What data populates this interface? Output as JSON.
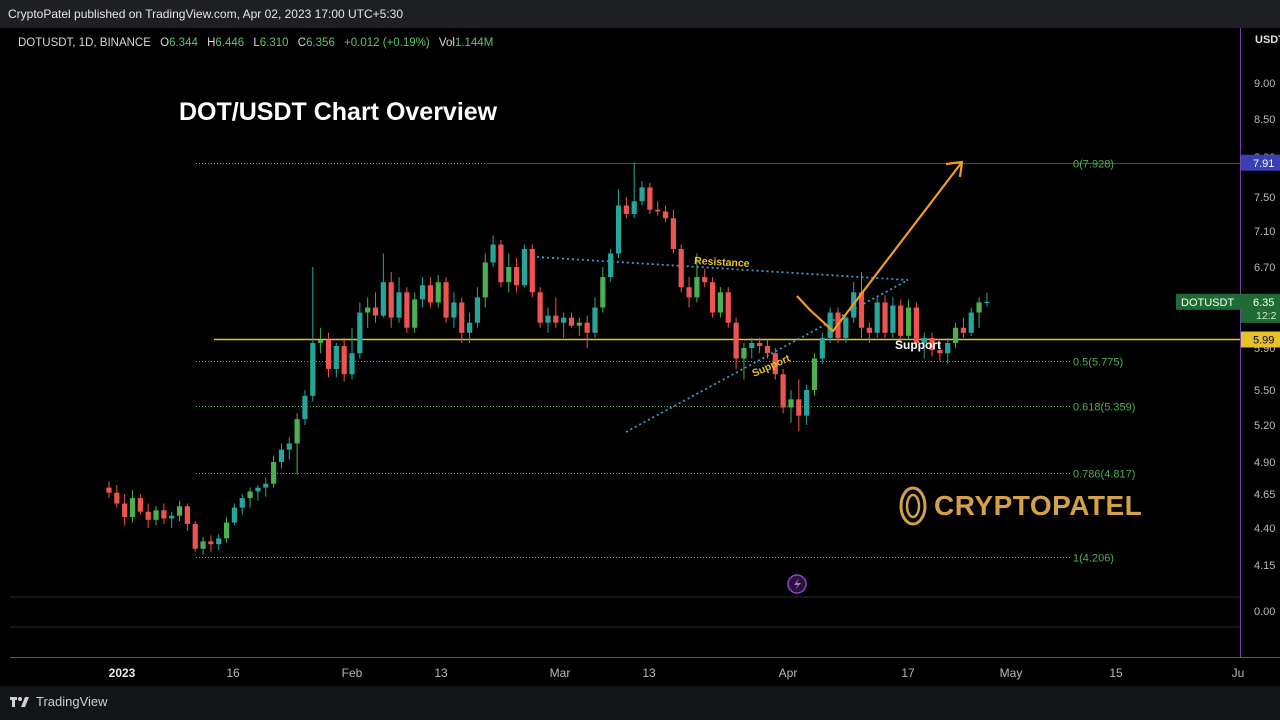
{
  "header": {
    "published": "CryptoPatel published on TradingView.com, Apr 02, 2023 17:00 UTC+5:30"
  },
  "legend": {
    "symbol": "DOTUSDT, 1D, BINANCE",
    "o_label": "O",
    "o": "6.344",
    "h_label": "H",
    "h": "6.446",
    "l_label": "L",
    "l": "6.310",
    "c_label": "C",
    "c": "6.356",
    "change": "+0.012 (+0.19%)",
    "vol_label": "Vol",
    "vol": "1.144M"
  },
  "footer": {
    "brand": "TradingView"
  },
  "watermark": "CRYPTOPATEL",
  "colors": {
    "bull": "#26a69a",
    "bull_alt": "#4caf50",
    "bear": "#ef5350",
    "support": "#e6c229",
    "arrow": "#f29d22",
    "trend": "#3d9bd1",
    "fib": "#4caf50",
    "fib_top": "#3a3fb5",
    "axis_border": "#7b3fa6"
  },
  "chart_data": {
    "type": "candlestick",
    "title": "DOT/USDT Chart Overview",
    "symbol": "DOTUSDT",
    "timeframe": "1D",
    "exchange": "BINANCE",
    "price_unit": "USDT",
    "ylim": [
      0.0,
      9.3
    ],
    "y_ticks": [
      "9.00",
      "8.50",
      "8.00",
      "7.50",
      "7.10",
      "6.70",
      "5.90",
      "5.50",
      "5.20",
      "4.90",
      "4.65",
      "4.40",
      "4.15",
      "0.00"
    ],
    "y_axis_header": "USDT",
    "x_ticks": [
      "2023",
      "16",
      "Feb",
      "13",
      "Mar",
      "13",
      "Apr",
      "17",
      "May",
      "15",
      "Ju"
    ],
    "candles": [
      {
        "date": "2023-01-01",
        "o": 4.7,
        "h": 4.75,
        "l": 4.62,
        "c": 4.66
      },
      {
        "date": "2023-01-02",
        "o": 4.66,
        "h": 4.72,
        "l": 4.55,
        "c": 4.58
      },
      {
        "date": "2023-01-03",
        "o": 4.58,
        "h": 4.65,
        "l": 4.42,
        "c": 4.48
      },
      {
        "date": "2023-01-04",
        "o": 4.48,
        "h": 4.68,
        "l": 4.44,
        "c": 4.62
      },
      {
        "date": "2023-01-05",
        "o": 4.62,
        "h": 4.65,
        "l": 4.5,
        "c": 4.52
      },
      {
        "date": "2023-01-06",
        "o": 4.52,
        "h": 4.58,
        "l": 4.4,
        "c": 4.46
      },
      {
        "date": "2023-01-07",
        "o": 4.46,
        "h": 4.56,
        "l": 4.42,
        "c": 4.53
      },
      {
        "date": "2023-01-08",
        "o": 4.53,
        "h": 4.58,
        "l": 4.43,
        "c": 4.47
      },
      {
        "date": "2023-01-09",
        "o": 4.47,
        "h": 4.52,
        "l": 4.4,
        "c": 4.49
      },
      {
        "date": "2023-01-10",
        "o": 4.49,
        "h": 4.6,
        "l": 4.45,
        "c": 4.56
      },
      {
        "date": "2023-01-11",
        "o": 4.56,
        "h": 4.58,
        "l": 4.38,
        "c": 4.43
      },
      {
        "date": "2023-01-12",
        "o": 4.43,
        "h": 4.45,
        "l": 4.24,
        "c": 4.26
      },
      {
        "date": "2023-01-13",
        "o": 4.26,
        "h": 4.34,
        "l": 4.22,
        "c": 4.31
      },
      {
        "date": "2023-01-14",
        "o": 4.31,
        "h": 4.35,
        "l": 4.24,
        "c": 4.29
      },
      {
        "date": "2023-01-15",
        "o": 4.29,
        "h": 4.36,
        "l": 4.25,
        "c": 4.33
      },
      {
        "date": "2023-01-16",
        "o": 4.33,
        "h": 4.48,
        "l": 4.3,
        "c": 4.44
      },
      {
        "date": "2023-01-17",
        "o": 4.44,
        "h": 4.58,
        "l": 4.42,
        "c": 4.55
      },
      {
        "date": "2023-01-18",
        "o": 4.55,
        "h": 4.65,
        "l": 4.5,
        "c": 4.62
      },
      {
        "date": "2023-01-19",
        "o": 4.62,
        "h": 4.7,
        "l": 4.55,
        "c": 4.67
      },
      {
        "date": "2023-01-20",
        "o": 4.67,
        "h": 4.72,
        "l": 4.6,
        "c": 4.7
      },
      {
        "date": "2023-01-21",
        "o": 4.7,
        "h": 4.78,
        "l": 4.63,
        "c": 4.73
      },
      {
        "date": "2023-01-22",
        "o": 4.73,
        "h": 4.95,
        "l": 4.7,
        "c": 4.9
      },
      {
        "date": "2023-01-23",
        "o": 4.9,
        "h": 5.05,
        "l": 4.85,
        "c": 5.0
      },
      {
        "date": "2023-01-24",
        "o": 5.0,
        "h": 5.1,
        "l": 4.92,
        "c": 5.05
      },
      {
        "date": "2023-01-25",
        "o": 5.05,
        "h": 5.3,
        "l": 4.8,
        "c": 5.25
      },
      {
        "date": "2023-01-26",
        "o": 5.25,
        "h": 5.5,
        "l": 5.2,
        "c": 5.45
      },
      {
        "date": "2023-01-27",
        "o": 5.45,
        "h": 6.7,
        "l": 5.4,
        "c": 5.95
      },
      {
        "date": "2023-01-28",
        "o": 5.95,
        "h": 6.1,
        "l": 5.85,
        "c": 5.98
      },
      {
        "date": "2023-01-29",
        "o": 5.98,
        "h": 6.05,
        "l": 5.62,
        "c": 5.7
      },
      {
        "date": "2023-01-30",
        "o": 5.7,
        "h": 5.95,
        "l": 5.62,
        "c": 5.92
      },
      {
        "date": "2023-01-31",
        "o": 5.92,
        "h": 6.0,
        "l": 5.58,
        "c": 5.65
      },
      {
        "date": "2023-02-01",
        "o": 5.65,
        "h": 6.1,
        "l": 5.6,
        "c": 5.85
      },
      {
        "date": "2023-02-02",
        "o": 5.85,
        "h": 6.35,
        "l": 5.8,
        "c": 6.25
      },
      {
        "date": "2023-02-03",
        "o": 6.25,
        "h": 6.4,
        "l": 6.1,
        "c": 6.3
      },
      {
        "date": "2023-02-04",
        "o": 6.3,
        "h": 6.45,
        "l": 6.15,
        "c": 6.22
      },
      {
        "date": "2023-02-05",
        "o": 6.22,
        "h": 6.85,
        "l": 6.2,
        "c": 6.55
      },
      {
        "date": "2023-02-06",
        "o": 6.55,
        "h": 6.65,
        "l": 6.1,
        "c": 6.2
      },
      {
        "date": "2023-02-07",
        "o": 6.2,
        "h": 6.6,
        "l": 6.15,
        "c": 6.45
      },
      {
        "date": "2023-02-08",
        "o": 6.45,
        "h": 6.5,
        "l": 6.05,
        "c": 6.1
      },
      {
        "date": "2023-02-09",
        "o": 6.1,
        "h": 6.45,
        "l": 6.05,
        "c": 6.38
      },
      {
        "date": "2023-02-10",
        "o": 6.38,
        "h": 6.6,
        "l": 6.3,
        "c": 6.52
      },
      {
        "date": "2023-02-11",
        "o": 6.52,
        "h": 6.6,
        "l": 6.3,
        "c": 6.35
      },
      {
        "date": "2023-02-12",
        "o": 6.35,
        "h": 6.62,
        "l": 6.3,
        "c": 6.55
      },
      {
        "date": "2023-02-13",
        "o": 6.55,
        "h": 6.6,
        "l": 6.15,
        "c": 6.2
      },
      {
        "date": "2023-02-14",
        "o": 6.2,
        "h": 6.45,
        "l": 6.1,
        "c": 6.35
      },
      {
        "date": "2023-02-15",
        "o": 6.35,
        "h": 6.4,
        "l": 5.95,
        "c": 6.05
      },
      {
        "date": "2023-02-16",
        "o": 6.05,
        "h": 6.25,
        "l": 5.95,
        "c": 6.15
      },
      {
        "date": "2023-02-17",
        "o": 6.15,
        "h": 6.5,
        "l": 6.1,
        "c": 6.4
      },
      {
        "date": "2023-02-18",
        "o": 6.4,
        "h": 6.85,
        "l": 6.3,
        "c": 6.75
      },
      {
        "date": "2023-02-19",
        "o": 6.75,
        "h": 7.05,
        "l": 6.7,
        "c": 6.95
      },
      {
        "date": "2023-02-20",
        "o": 6.95,
        "h": 7.0,
        "l": 6.5,
        "c": 6.55
      },
      {
        "date": "2023-02-21",
        "o": 6.55,
        "h": 6.85,
        "l": 6.45,
        "c": 6.7
      },
      {
        "date": "2023-02-22",
        "o": 6.7,
        "h": 6.8,
        "l": 6.45,
        "c": 6.52
      },
      {
        "date": "2023-02-23",
        "o": 6.52,
        "h": 6.95,
        "l": 6.5,
        "c": 6.9
      },
      {
        "date": "2023-02-24",
        "o": 6.9,
        "h": 6.95,
        "l": 6.4,
        "c": 6.45
      },
      {
        "date": "2023-02-25",
        "o": 6.45,
        "h": 6.5,
        "l": 6.1,
        "c": 6.15
      },
      {
        "date": "2023-02-26",
        "o": 6.15,
        "h": 6.3,
        "l": 6.05,
        "c": 6.22
      },
      {
        "date": "2023-02-27",
        "o": 6.22,
        "h": 6.4,
        "l": 6.1,
        "c": 6.15
      },
      {
        "date": "2023-02-28",
        "o": 6.15,
        "h": 6.25,
        "l": 6.0,
        "c": 6.2
      },
      {
        "date": "2023-03-01",
        "o": 6.2,
        "h": 6.25,
        "l": 6.1,
        "c": 6.12
      },
      {
        "date": "2023-03-02",
        "o": 6.12,
        "h": 6.2,
        "l": 6.02,
        "c": 6.15
      },
      {
        "date": "2023-03-03",
        "o": 6.15,
        "h": 6.22,
        "l": 5.9,
        "c": 6.05
      },
      {
        "date": "2023-03-04",
        "o": 6.05,
        "h": 6.4,
        "l": 6.0,
        "c": 6.3
      },
      {
        "date": "2023-03-05",
        "o": 6.3,
        "h": 6.7,
        "l": 6.25,
        "c": 6.6
      },
      {
        "date": "2023-03-06",
        "o": 6.6,
        "h": 6.9,
        "l": 6.55,
        "c": 6.85
      },
      {
        "date": "2023-03-07",
        "o": 6.85,
        "h": 7.6,
        "l": 6.8,
        "c": 7.4
      },
      {
        "date": "2023-03-08",
        "o": 7.4,
        "h": 7.5,
        "l": 7.25,
        "c": 7.3
      },
      {
        "date": "2023-03-09",
        "o": 7.3,
        "h": 7.93,
        "l": 7.25,
        "c": 7.45
      },
      {
        "date": "2023-03-10",
        "o": 7.45,
        "h": 7.7,
        "l": 7.4,
        "c": 7.62
      },
      {
        "date": "2023-03-11",
        "o": 7.62,
        "h": 7.68,
        "l": 7.3,
        "c": 7.35
      },
      {
        "date": "2023-03-12",
        "o": 7.35,
        "h": 7.45,
        "l": 7.28,
        "c": 7.33
      },
      {
        "date": "2023-03-13",
        "o": 7.33,
        "h": 7.4,
        "l": 7.2,
        "c": 7.25
      },
      {
        "date": "2023-03-14",
        "o": 7.25,
        "h": 7.35,
        "l": 6.85,
        "c": 6.9
      },
      {
        "date": "2023-03-15",
        "o": 6.9,
        "h": 6.95,
        "l": 6.45,
        "c": 6.5
      },
      {
        "date": "2023-03-16",
        "o": 6.5,
        "h": 6.6,
        "l": 6.3,
        "c": 6.4
      },
      {
        "date": "2023-03-17",
        "o": 6.4,
        "h": 6.85,
        "l": 6.35,
        "c": 6.6
      },
      {
        "date": "2023-03-18",
        "o": 6.6,
        "h": 6.68,
        "l": 6.5,
        "c": 6.55
      },
      {
        "date": "2023-03-19",
        "o": 6.55,
        "h": 6.6,
        "l": 6.2,
        "c": 6.25
      },
      {
        "date": "2023-03-20",
        "o": 6.25,
        "h": 6.5,
        "l": 6.2,
        "c": 6.45
      },
      {
        "date": "2023-03-21",
        "o": 6.45,
        "h": 6.5,
        "l": 6.1,
        "c": 6.15
      },
      {
        "date": "2023-03-22",
        "o": 6.15,
        "h": 6.2,
        "l": 5.7,
        "c": 5.8
      },
      {
        "date": "2023-03-23",
        "o": 5.8,
        "h": 5.95,
        "l": 5.6,
        "c": 5.9
      },
      {
        "date": "2023-03-24",
        "o": 5.9,
        "h": 6.0,
        "l": 5.8,
        "c": 5.95
      },
      {
        "date": "2023-03-25",
        "o": 5.95,
        "h": 6.0,
        "l": 5.85,
        "c": 5.92
      },
      {
        "date": "2023-03-26",
        "o": 5.92,
        "h": 5.98,
        "l": 5.8,
        "c": 5.85
      },
      {
        "date": "2023-03-27",
        "o": 5.85,
        "h": 5.9,
        "l": 5.6,
        "c": 5.65
      },
      {
        "date": "2023-03-28",
        "o": 5.65,
        "h": 5.7,
        "l": 5.3,
        "c": 5.35
      },
      {
        "date": "2023-03-29",
        "o": 5.35,
        "h": 5.5,
        "l": 5.22,
        "c": 5.42
      },
      {
        "date": "2023-03-30",
        "o": 5.42,
        "h": 5.6,
        "l": 5.15,
        "c": 5.28
      },
      {
        "date": "2023-03-31",
        "o": 5.28,
        "h": 5.55,
        "l": 5.2,
        "c": 5.5
      },
      {
        "date": "2023-04-01",
        "o": 5.5,
        "h": 5.85,
        "l": 5.45,
        "c": 5.8
      },
      {
        "date": "2023-04-02",
        "o": 5.8,
        "h": 6.05,
        "l": 5.75,
        "c": 6.0
      },
      {
        "date": "2023-04-03",
        "o": 6.0,
        "h": 6.3,
        "l": 5.95,
        "c": 6.25
      },
      {
        "date": "2023-04-04",
        "o": 6.25,
        "h": 6.3,
        "l": 5.95,
        "c": 6.0
      },
      {
        "date": "2023-04-05",
        "o": 6.0,
        "h": 6.25,
        "l": 5.95,
        "c": 6.2
      },
      {
        "date": "2023-04-06",
        "o": 6.2,
        "h": 6.55,
        "l": 6.15,
        "c": 6.45
      },
      {
        "date": "2023-04-07",
        "o": 6.45,
        "h": 6.65,
        "l": 6.0,
        "c": 6.1
      },
      {
        "date": "2023-04-08",
        "o": 6.1,
        "h": 6.15,
        "l": 5.95,
        "c": 6.05
      },
      {
        "date": "2023-04-09",
        "o": 6.05,
        "h": 6.4,
        "l": 6.0,
        "c": 6.35
      },
      {
        "date": "2023-04-10",
        "o": 6.35,
        "h": 6.42,
        "l": 6.0,
        "c": 6.05
      },
      {
        "date": "2023-04-11",
        "o": 6.05,
        "h": 6.4,
        "l": 6.0,
        "c": 6.32
      },
      {
        "date": "2023-04-12",
        "o": 6.32,
        "h": 6.38,
        "l": 5.98,
        "c": 6.02
      },
      {
        "date": "2023-04-13",
        "o": 6.02,
        "h": 6.38,
        "l": 5.98,
        "c": 6.3
      },
      {
        "date": "2023-04-14",
        "o": 6.3,
        "h": 6.35,
        "l": 5.9,
        "c": 5.95
      },
      {
        "date": "2023-04-15",
        "o": 5.95,
        "h": 6.05,
        "l": 5.8,
        "c": 6.0
      },
      {
        "date": "2023-04-16",
        "o": 6.0,
        "h": 6.05,
        "l": 5.82,
        "c": 5.88
      },
      {
        "date": "2023-04-17",
        "o": 5.88,
        "h": 5.95,
        "l": 5.78,
        "c": 5.85
      },
      {
        "date": "2023-04-18",
        "o": 5.85,
        "h": 6.0,
        "l": 5.75,
        "c": 5.95
      },
      {
        "date": "2023-04-19",
        "o": 5.95,
        "h": 6.15,
        "l": 5.9,
        "c": 6.1
      },
      {
        "date": "2023-04-20",
        "o": 6.1,
        "h": 6.2,
        "l": 6.0,
        "c": 6.05
      },
      {
        "date": "2023-04-21",
        "o": 6.05,
        "h": 6.3,
        "l": 6.02,
        "c": 6.25
      },
      {
        "date": "2023-04-22",
        "o": 6.25,
        "h": 6.4,
        "l": 6.1,
        "c": 6.35
      },
      {
        "date": "2023-04-23",
        "o": 6.344,
        "h": 6.446,
        "l": 6.31,
        "c": 6.356
      }
    ],
    "fib_levels": [
      {
        "label": "0(7.928)",
        "value": 7.928
      },
      {
        "label": "0.5(5.775)",
        "value": 5.775
      },
      {
        "label": "0.618(5.359)",
        "value": 5.359
      },
      {
        "label": "0.786(4.817)",
        "value": 4.817
      },
      {
        "label": "1(4.206)",
        "value": 4.206
      }
    ],
    "support_level": 5.99,
    "annotations": {
      "resistance": "Resistance",
      "support_line": "Support",
      "support_trend": "Support"
    },
    "price_tags": {
      "top": "7.91",
      "symbol": "DOTUSDT",
      "current": "6.35",
      "countdown": "12:2",
      "support": "5.99"
    }
  }
}
